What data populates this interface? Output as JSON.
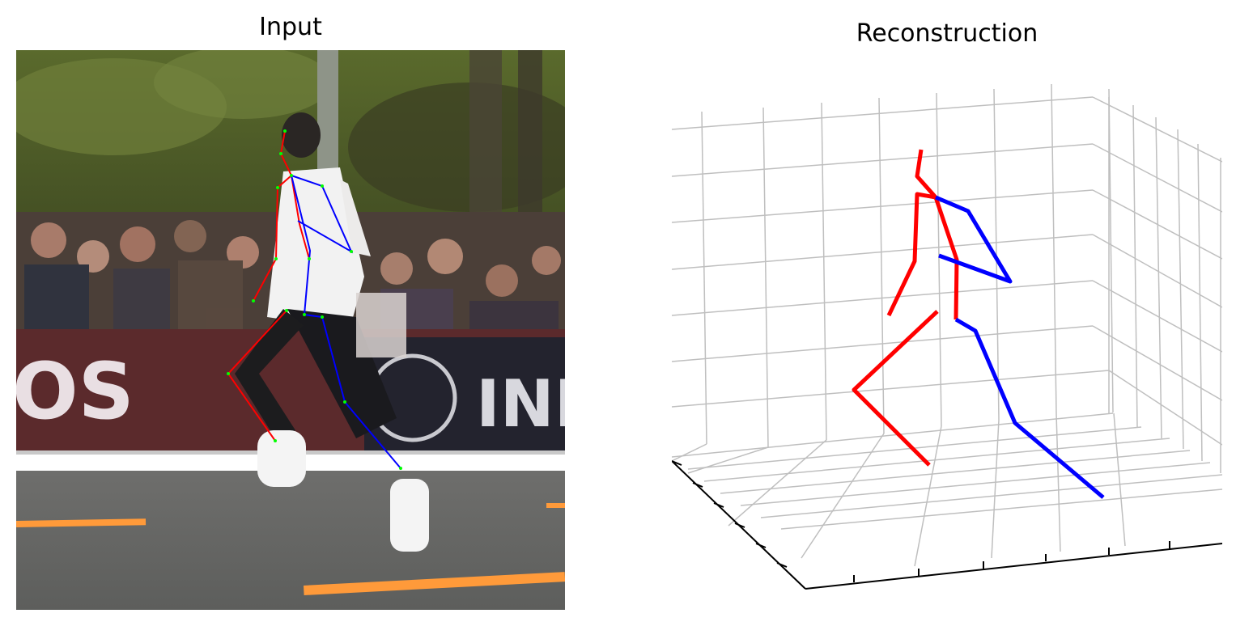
{
  "figure": {
    "left_title": "Input",
    "right_title": "Reconstruction"
  },
  "colors": {
    "right_side": "#ff0000",
    "left_side": "#0000ff",
    "keypoint": "#00ff00",
    "grid": "#bfbfbf",
    "axis": "#000000"
  },
  "input_photo": {
    "description_icon": "runner-photo",
    "banner_text_left": "OS",
    "banner_text_right": "INE"
  }
}
